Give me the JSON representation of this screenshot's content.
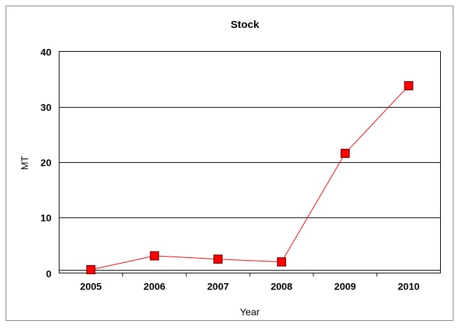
{
  "chart_data": {
    "type": "line",
    "title": "Stock",
    "xlabel": "Year",
    "ylabel": "MT",
    "categories": [
      "2005",
      "2006",
      "2007",
      "2008",
      "2009",
      "2010"
    ],
    "series": [
      {
        "values": [
          0.6,
          3.1,
          2.5,
          2.0,
          21.6,
          33.8
        ],
        "color": "#ff0000",
        "marker": "square"
      }
    ],
    "ylim": [
      0,
      40
    ],
    "yticks": [
      0,
      10,
      20,
      30,
      40
    ],
    "grid": true,
    "legend": "none"
  }
}
